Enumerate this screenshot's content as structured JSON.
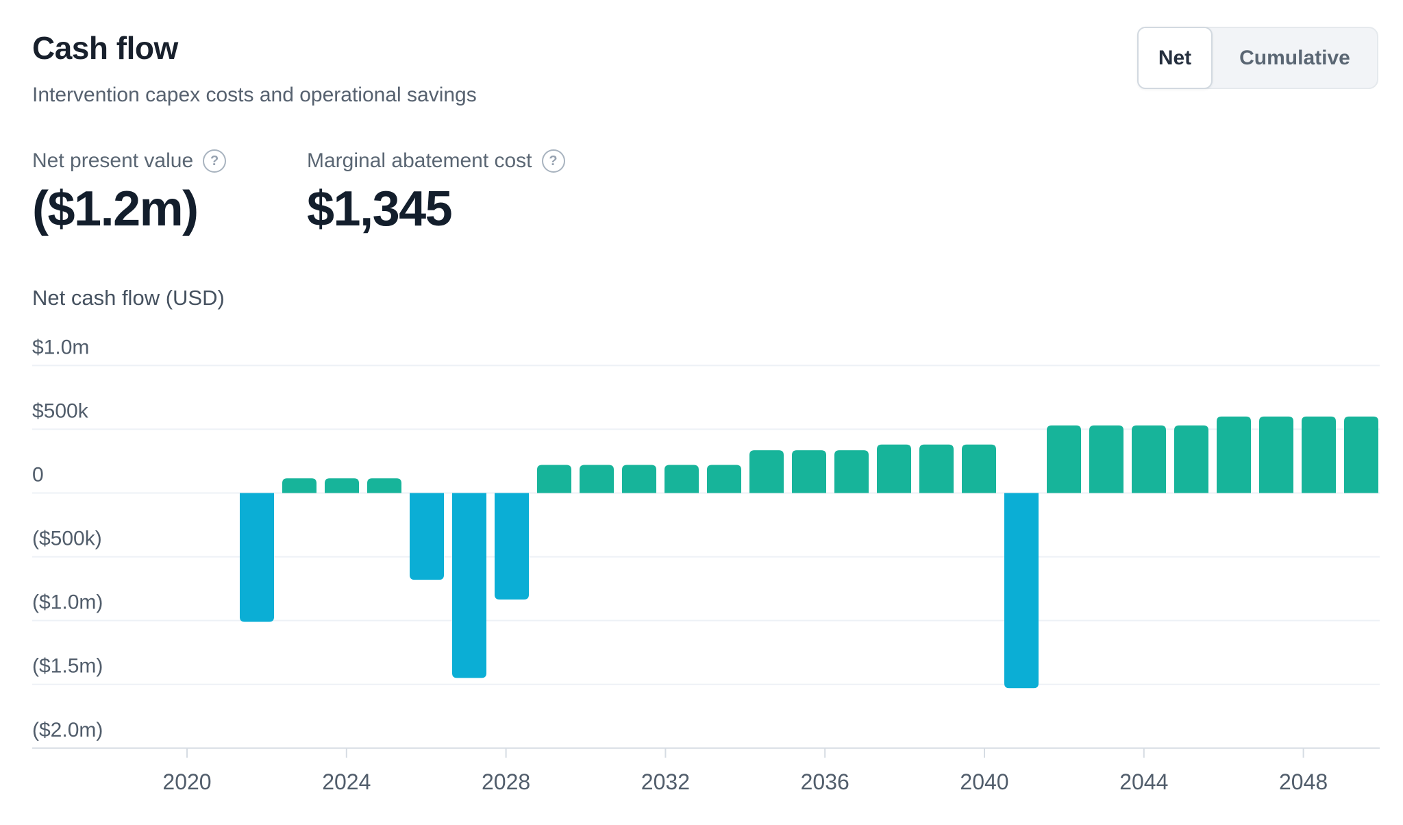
{
  "header": {
    "title": "Cash flow",
    "subtitle": "Intervention capex costs and operational savings"
  },
  "toggle": {
    "options": [
      {
        "label": "Net",
        "selected": true
      },
      {
        "label": "Cumulative",
        "selected": false
      }
    ]
  },
  "stats": [
    {
      "label": "Net present value",
      "value": "($1.2m)",
      "help_glyph": "?"
    },
    {
      "label": "Marginal abatement cost",
      "value": "$1,345",
      "help_glyph": "?"
    }
  ],
  "chart_data": {
    "type": "bar",
    "title": "Net cash flow (USD)",
    "series_name": "Net cash flow",
    "currency": "USD",
    "x": [
      2022,
      2023,
      2024,
      2025,
      2026,
      2027,
      2028,
      2029,
      2030,
      2031,
      2032,
      2033,
      2034,
      2035,
      2036,
      2037,
      2038,
      2039,
      2040,
      2041,
      2042,
      2043,
      2044,
      2045,
      2046,
      2047,
      2048
    ],
    "values": [
      -1010000,
      115000,
      115000,
      115000,
      -680000,
      -1450000,
      -835000,
      220000,
      220000,
      220000,
      220000,
      220000,
      335000,
      335000,
      335000,
      380000,
      380000,
      380000,
      -1530000,
      530000,
      530000,
      530000,
      530000,
      600000,
      600000,
      600000,
      600000
    ],
    "x_axis_ticks": [
      2020,
      2024,
      2028,
      2032,
      2036,
      2040,
      2044,
      2048
    ],
    "y_axis_ticks": [
      {
        "label": "$1.0m",
        "value": 1000000
      },
      {
        "label": "$500k",
        "value": 500000
      },
      {
        "label": "0",
        "value": 0
      },
      {
        "label": "($500k)",
        "value": -500000
      },
      {
        "label": "($1.0m)",
        "value": -1000000
      },
      {
        "label": "($1.5m)",
        "value": -1500000
      },
      {
        "label": "($2.0m)",
        "value": -2000000
      }
    ],
    "ylim": [
      -2000000,
      1000000
    ],
    "grid": true,
    "legend": false,
    "colors": {
      "positive": "#17B49A",
      "negative": "#0BAED5"
    }
  }
}
